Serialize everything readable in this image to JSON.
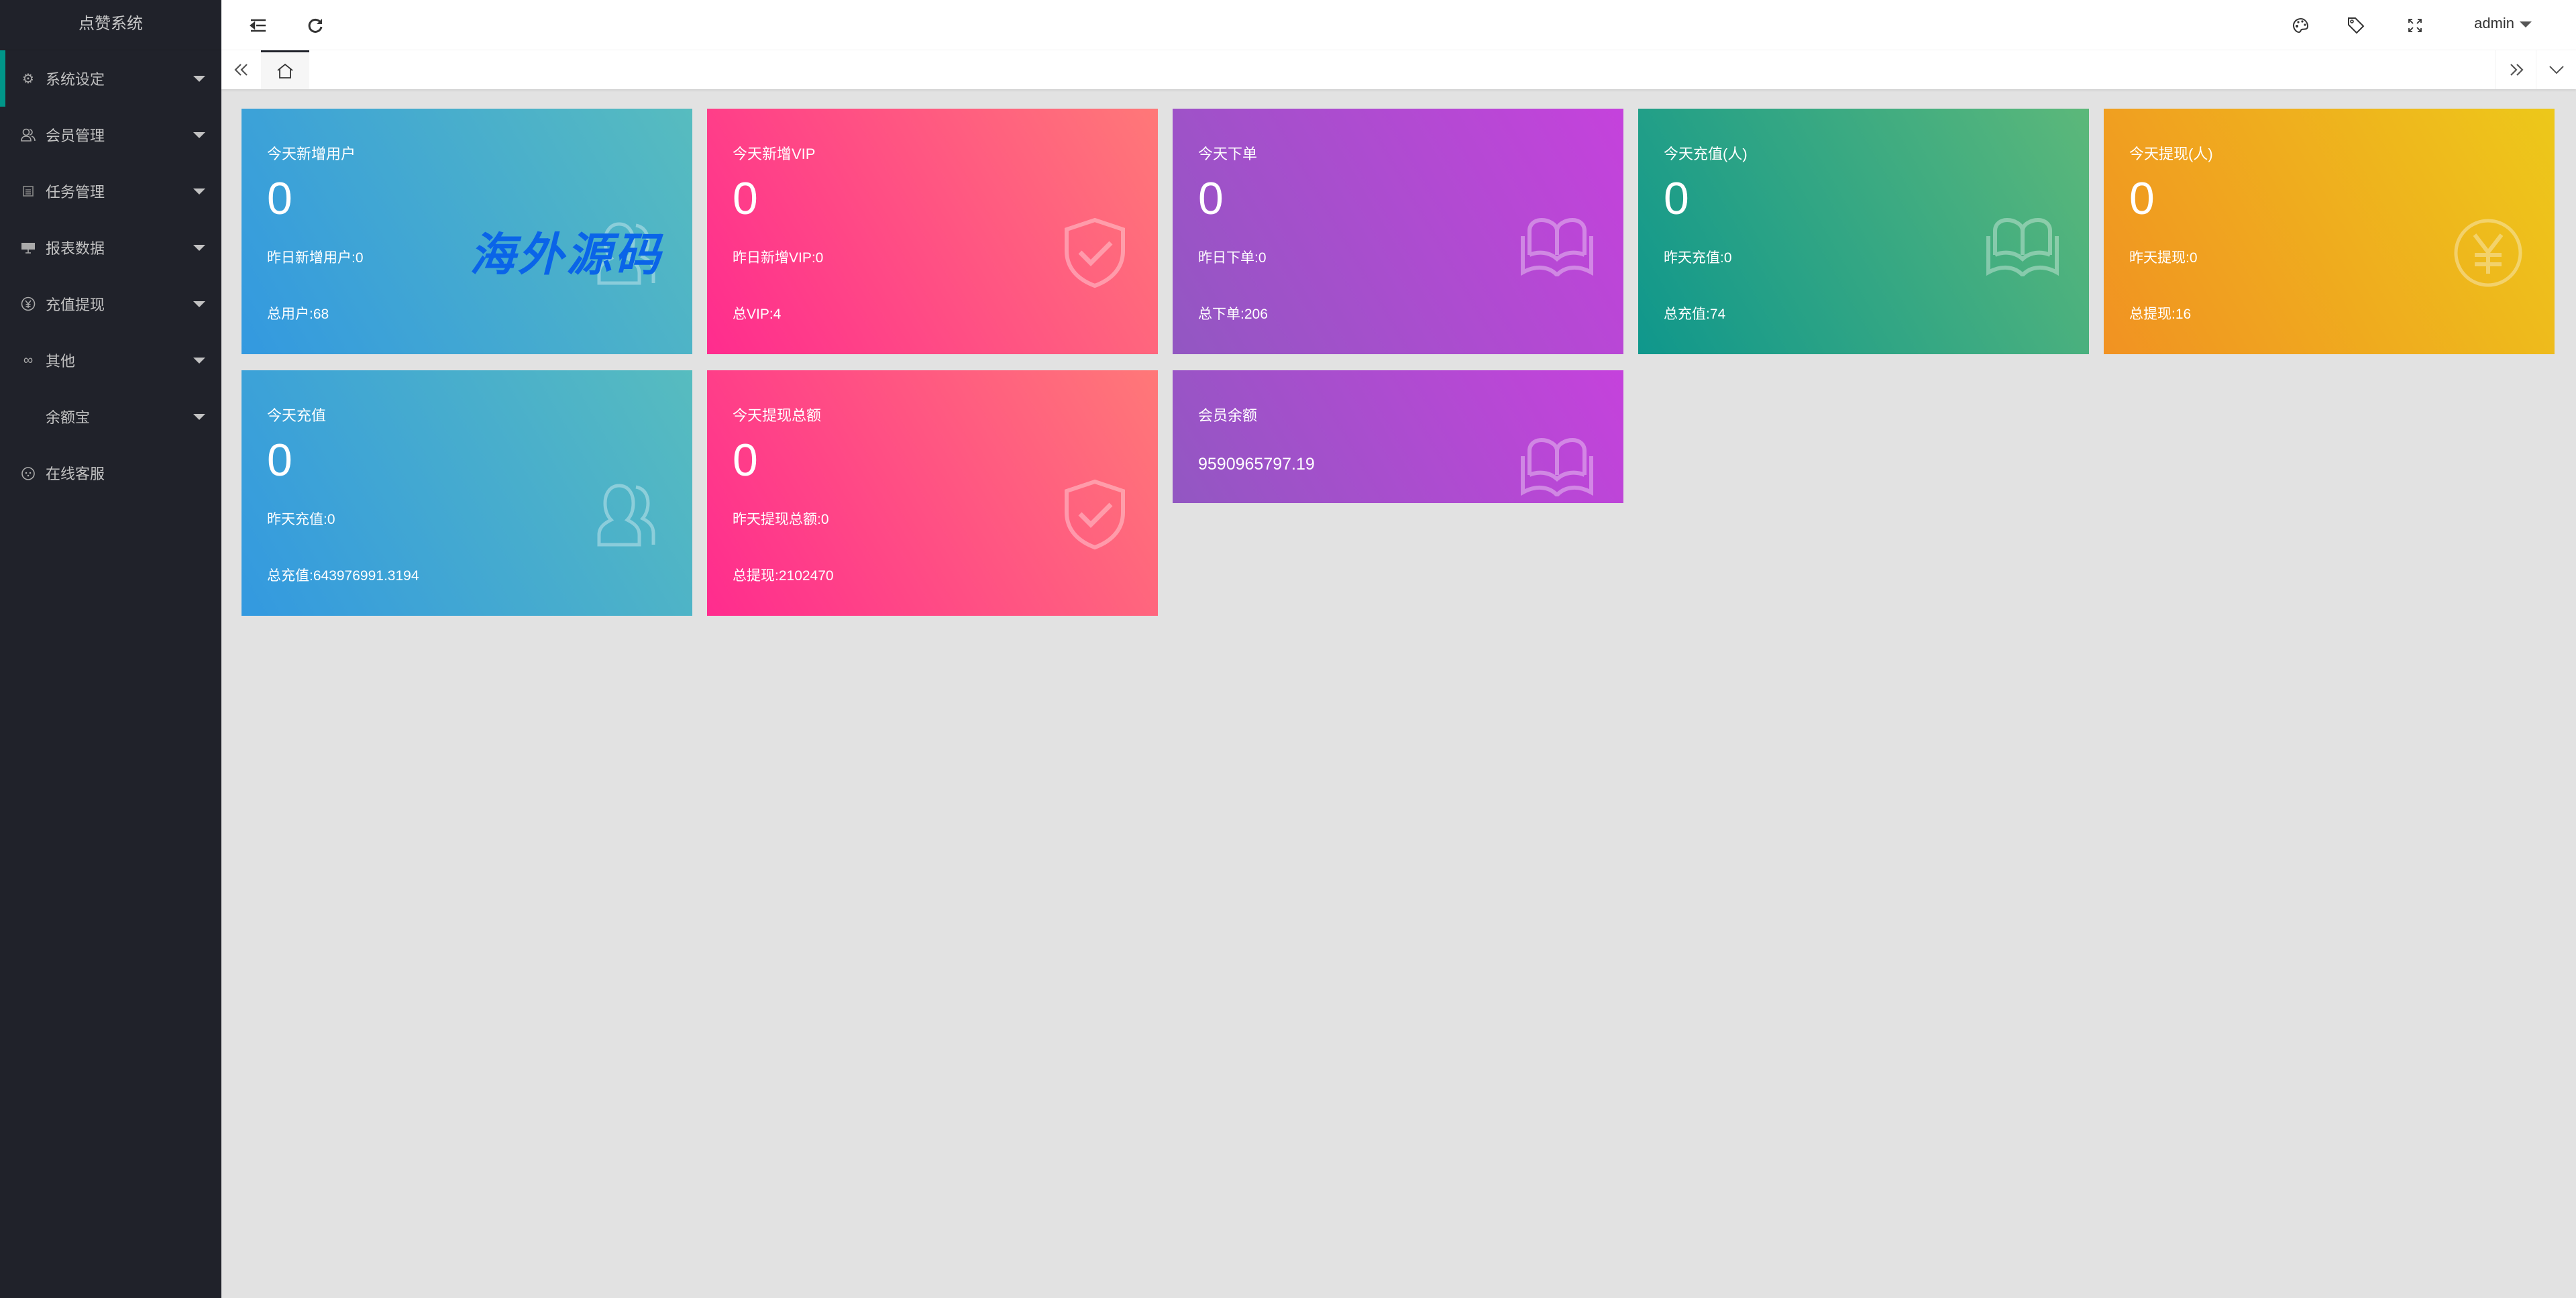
{
  "app": {
    "title": "点赞系统"
  },
  "sidebar": {
    "items": [
      {
        "label": "系统设定",
        "icon": "gear-icon",
        "active": true
      },
      {
        "label": "会员管理",
        "icon": "users-icon"
      },
      {
        "label": "任务管理",
        "icon": "file-icon"
      },
      {
        "label": "报表数据",
        "icon": "chart-board-icon"
      },
      {
        "label": "充值提现",
        "icon": "yen-icon"
      },
      {
        "label": "其他",
        "icon": "link-icon"
      },
      {
        "label": "余额宝",
        "icon": ""
      },
      {
        "label": "在线客服",
        "icon": "chat-face-icon"
      }
    ]
  },
  "header": {
    "user": "admin",
    "icons": [
      "menu-fold-icon",
      "refresh-icon",
      "palette-icon",
      "tag-icon",
      "fullscreen-icon"
    ]
  },
  "cards": [
    {
      "title": "今天新增用户",
      "value": "0",
      "yesterday": "昨日新增用户:0",
      "total": "总用户:68",
      "icon": "users-icon",
      "color": "blue"
    },
    {
      "title": "今天新增VIP",
      "value": "0",
      "yesterday": "昨日新增VIP:0",
      "total": "总VIP:4",
      "icon": "shield-check-icon",
      "color": "pink"
    },
    {
      "title": "今天下单",
      "value": "0",
      "yesterday": "昨日下单:0",
      "total": "总下单:206",
      "icon": "book-icon",
      "color": "purple"
    },
    {
      "title": "今天充值(人)",
      "value": "0",
      "yesterday": "昨天充值:0",
      "total": "总充值:74",
      "icon": "book-icon",
      "color": "green"
    },
    {
      "title": "今天提现(人)",
      "value": "0",
      "yesterday": "昨天提现:0",
      "total": "总提现:16",
      "icon": "yen-icon",
      "color": "orange"
    },
    {
      "title": "今天充值",
      "value": "0",
      "yesterday": "昨天充值:0",
      "total": "总充值:643976991.3194",
      "icon": "users-icon",
      "color": "blue"
    },
    {
      "title": "今天提现总额",
      "value": "0",
      "yesterday": "昨天提现总额:0",
      "total": "总提现:2102470",
      "icon": "shield-check-icon",
      "color": "pink"
    }
  ],
  "balance_card": {
    "title": "会员余额",
    "value": "9590965797.19",
    "icon": "book-icon",
    "color": "purple"
  },
  "watermark": "海外源码"
}
